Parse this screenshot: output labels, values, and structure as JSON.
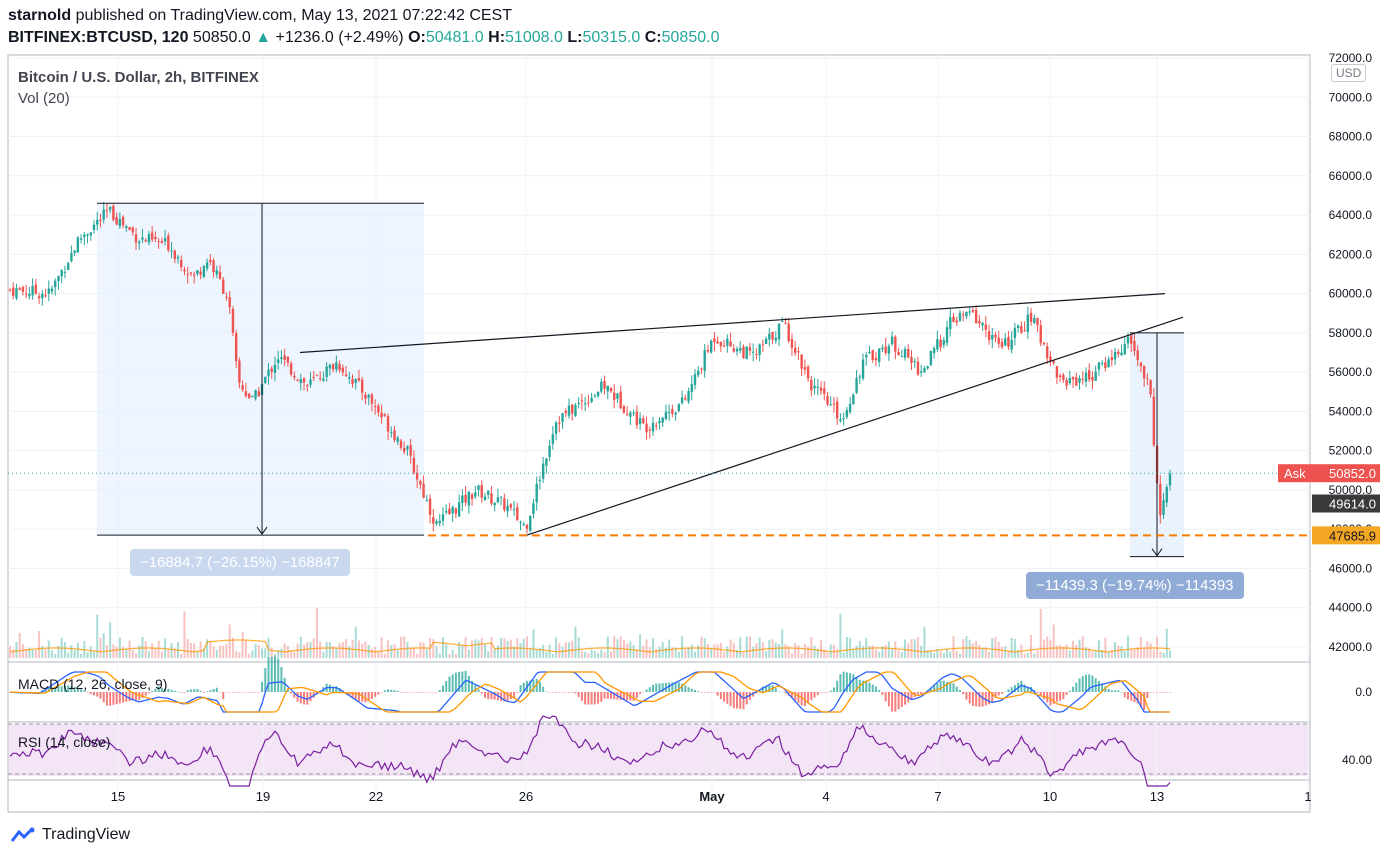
{
  "header": {
    "publisher": "starnold",
    "published_text": "published on TradingView.com, May 13, 2021 07:22:42 CEST",
    "symbol": "BITFINEX:BTCUSD, 120",
    "last": "50850.0",
    "change": "+1236.0 (+2.49%)",
    "o_label": "O:",
    "o": "50481.0",
    "h_label": "H:",
    "h": "51008.0",
    "l_label": "L:",
    "l": "50315.0",
    "c_label": "C:",
    "c": "50850.0"
  },
  "legend": {
    "title": "Bitcoin / U.S. Dollar, 2h, BITFINEX",
    "vol": "Vol (20)",
    "macd": "MACD (12, 26, close, 9)",
    "rsi": "RSI (14, close)"
  },
  "currency_button": "USD",
  "price_axis": [
    "72000.0",
    "70000.0",
    "68000.0",
    "66000.0",
    "64000.0",
    "62000.0",
    "60000.0",
    "58000.0",
    "56000.0",
    "54000.0",
    "52000.0",
    "50000.0",
    "48000.0",
    "46000.0",
    "44000.0",
    "42000.0"
  ],
  "macd_axis": [
    "0.0"
  ],
  "rsi_axis": [
    "40.00"
  ],
  "time_axis": [
    "15",
    "19",
    "22",
    "26",
    "May",
    "4",
    "7",
    "10",
    "13",
    "1"
  ],
  "price_tags": {
    "ask_label": "Ask",
    "ask": "50852.0",
    "close": "49614.0",
    "support": "47685.9"
  },
  "measurements": {
    "left": "−16884.7 (−26.15%) −168847",
    "right": "−11439.3 (−19.74%) −114393"
  },
  "colors": {
    "up": "#26a69a",
    "down": "#ef5350",
    "support_line": "#f57c00",
    "macd": "#2962ff",
    "signal": "#ff9800",
    "rsi": "#7b1fa2",
    "rsi_band": "#f3e5f5",
    "measure_box": "#e3effd",
    "measure_label": "#8fabd6",
    "ask_tag": "#ef5350"
  },
  "footer": {
    "brand": "TradingView",
    "icon": "tradingview-logo-icon"
  },
  "chart_data": {
    "type": "candlestick",
    "title": "Bitcoin / U.S. Dollar, 2h, BITFINEX",
    "y_range": [
      41000,
      72500
    ],
    "x_range_label": "Apr 12 – May 13, 2021",
    "path_points": [
      {
        "t": 0,
        "p": 60200
      },
      {
        "t": 0.04,
        "p": 60000
      },
      {
        "t": 0.07,
        "p": 62800
      },
      {
        "t": 0.1,
        "p": 64200
      },
      {
        "t": 0.13,
        "p": 62800
      },
      {
        "t": 0.16,
        "p": 62500
      },
      {
        "t": 0.185,
        "p": 60800
      },
      {
        "t": 0.2,
        "p": 61800
      },
      {
        "t": 0.22,
        "p": 59800
      },
      {
        "t": 0.23,
        "p": 55500
      },
      {
        "t": 0.245,
        "p": 54500
      },
      {
        "t": 0.27,
        "p": 56800
      },
      {
        "t": 0.3,
        "p": 55300
      },
      {
        "t": 0.33,
        "p": 56500
      },
      {
        "t": 0.36,
        "p": 54800
      },
      {
        "t": 0.4,
        "p": 52000
      },
      {
        "t": 0.43,
        "p": 48200
      },
      {
        "t": 0.47,
        "p": 50000
      },
      {
        "t": 0.5,
        "p": 49200
      },
      {
        "t": 0.52,
        "p": 48100
      },
      {
        "t": 0.55,
        "p": 53500
      },
      {
        "t": 0.6,
        "p": 55300
      },
      {
        "t": 0.64,
        "p": 53200
      },
      {
        "t": 0.68,
        "p": 54500
      },
      {
        "t": 0.71,
        "p": 57800
      },
      {
        "t": 0.75,
        "p": 56800
      },
      {
        "t": 0.78,
        "p": 58500
      },
      {
        "t": 0.81,
        "p": 55200
      },
      {
        "t": 0.84,
        "p": 53600
      },
      {
        "t": 0.86,
        "p": 56500
      },
      {
        "t": 0.89,
        "p": 57500
      },
      {
        "t": 0.92,
        "p": 56000
      },
      {
        "t": 0.95,
        "p": 58600
      },
      {
        "t": 0.97,
        "p": 59000
      },
      {
        "t": 1.0,
        "p": 57200
      },
      {
        "t": 1.03,
        "p": 58800
      },
      {
        "t": 1.06,
        "p": 55500
      },
      {
        "t": 1.09,
        "p": 55800
      },
      {
        "t": 1.13,
        "p": 57600
      },
      {
        "t": 1.15,
        "p": 55000
      },
      {
        "t": 1.16,
        "p": 48500
      },
      {
        "t": 1.17,
        "p": 50850
      }
    ],
    "support_level": 47685.9,
    "annotations": [
      {
        "type": "measure",
        "from": 64600,
        "to": 47700,
        "change": "−16884.7 (−26.15%)"
      },
      {
        "type": "measure",
        "from": 58000,
        "to": 46600,
        "change": "−11439.3 (−19.74%)"
      },
      {
        "type": "trendline_upper",
        "from": 57000,
        "to": 60000
      },
      {
        "type": "trendline_lower",
        "from": 47700,
        "to": 58800
      }
    ]
  }
}
